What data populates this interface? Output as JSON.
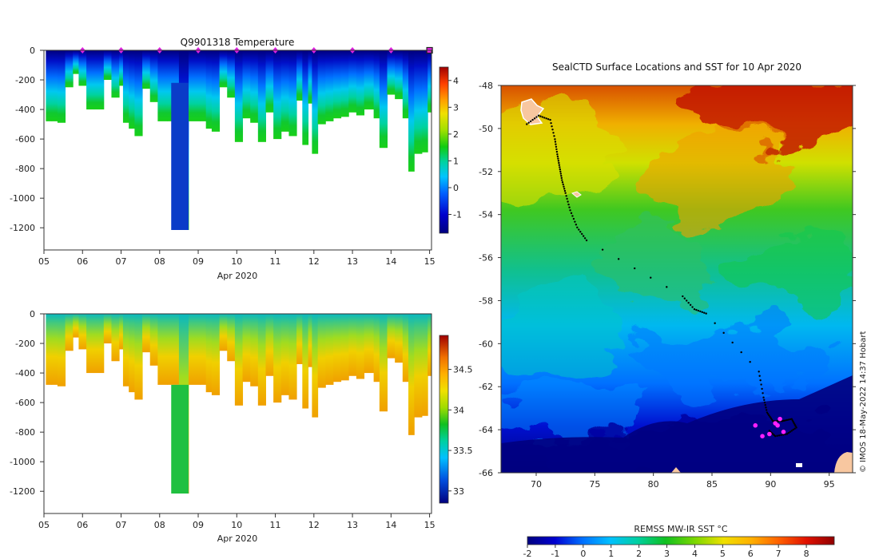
{
  "chart_data": [
    {
      "id": "temperature",
      "type": "heatmap",
      "title": "Q9901318  Temperature",
      "xlabel": "Apr 2020",
      "ylabel": "",
      "xlim": [
        5,
        15.05
      ],
      "ylim": [
        -1350,
        0
      ],
      "x_ticks": [
        "05",
        "06",
        "07",
        "08",
        "09",
        "10",
        "11",
        "12",
        "13",
        "14",
        "15"
      ],
      "y_ticks": [
        "0",
        "-200",
        "-400",
        "-600",
        "-800",
        "-1000",
        "-1200"
      ],
      "colorbar": {
        "min": -1.7,
        "max": 4.5,
        "ticks": [
          "4",
          "3",
          "2",
          "1",
          "0",
          "-1"
        ]
      },
      "surface_markers": [
        6,
        7,
        8,
        9,
        10,
        11,
        12,
        13,
        14
      ],
      "highlight_marker": 15.0,
      "profiles": [
        {
          "t": 5.05,
          "depth": 480
        },
        {
          "t": 5.2,
          "depth": 480
        },
        {
          "t": 5.35,
          "depth": 490
        },
        {
          "t": 5.55,
          "depth": 250
        },
        {
          "t": 5.75,
          "depth": 160
        },
        {
          "t": 5.9,
          "depth": 240
        },
        {
          "t": 6.1,
          "depth": 400
        },
        {
          "t": 6.3,
          "depth": 400
        },
        {
          "t": 6.55,
          "depth": 200
        },
        {
          "t": 6.75,
          "depth": 320
        },
        {
          "t": 6.95,
          "depth": 240
        },
        {
          "t": 7.05,
          "depth": 490
        },
        {
          "t": 7.2,
          "depth": 530
        },
        {
          "t": 7.35,
          "depth": 580
        },
        {
          "t": 7.55,
          "depth": 260
        },
        {
          "t": 7.75,
          "depth": 350
        },
        {
          "t": 7.95,
          "depth": 480
        },
        {
          "t": 8.2,
          "depth": 480
        },
        {
          "t": 8.5,
          "depth": 1215
        },
        {
          "t": 8.75,
          "depth": 480
        },
        {
          "t": 9.05,
          "depth": 480
        },
        {
          "t": 9.2,
          "depth": 530
        },
        {
          "t": 9.35,
          "depth": 550
        },
        {
          "t": 9.55,
          "depth": 250
        },
        {
          "t": 9.75,
          "depth": 320
        },
        {
          "t": 9.95,
          "depth": 620
        },
        {
          "t": 10.15,
          "depth": 460
        },
        {
          "t": 10.35,
          "depth": 490
        },
        {
          "t": 10.55,
          "depth": 620
        },
        {
          "t": 10.75,
          "depth": 420
        },
        {
          "t": 10.95,
          "depth": 600
        },
        {
          "t": 11.15,
          "depth": 550
        },
        {
          "t": 11.35,
          "depth": 580
        },
        {
          "t": 11.55,
          "depth": 340
        },
        {
          "t": 11.7,
          "depth": 640
        },
        {
          "t": 11.85,
          "depth": 360
        },
        {
          "t": 11.95,
          "depth": 700
        },
        {
          "t": 12.1,
          "depth": 500
        },
        {
          "t": 12.3,
          "depth": 480
        },
        {
          "t": 12.5,
          "depth": 460
        },
        {
          "t": 12.7,
          "depth": 450
        },
        {
          "t": 12.9,
          "depth": 420
        },
        {
          "t": 13.1,
          "depth": 440
        },
        {
          "t": 13.3,
          "depth": 400
        },
        {
          "t": 13.55,
          "depth": 460
        },
        {
          "t": 13.7,
          "depth": 660
        },
        {
          "t": 13.9,
          "depth": 300
        },
        {
          "t": 14.1,
          "depth": 330
        },
        {
          "t": 14.3,
          "depth": 460
        },
        {
          "t": 14.45,
          "depth": 820
        },
        {
          "t": 14.6,
          "depth": 700
        },
        {
          "t": 14.8,
          "depth": 690
        },
        {
          "t": 14.95,
          "depth": 420
        }
      ]
    },
    {
      "id": "salinity",
      "type": "heatmap",
      "title": "",
      "xlabel": "Apr 2020",
      "ylabel": "",
      "xlim": [
        5,
        15.05
      ],
      "ylim": [
        -1350,
        0
      ],
      "x_ticks": [
        "05",
        "06",
        "07",
        "08",
        "09",
        "10",
        "11",
        "12",
        "13",
        "14",
        "15"
      ],
      "y_ticks": [
        "0",
        "-200",
        "-400",
        "-600",
        "-800",
        "-1000",
        "-1200"
      ],
      "colorbar": {
        "min": 32.85,
        "max": 34.92,
        "ticks": [
          "34.5",
          "34",
          "33.5",
          "33"
        ]
      }
    },
    {
      "id": "sst_map",
      "type": "heatmap",
      "title": "SealCTD Surface Locations and SST for 10 Apr 2020",
      "xlim": [
        67,
        97
      ],
      "ylim": [
        -66,
        -48
      ],
      "x_ticks": [
        "70",
        "75",
        "80",
        "85",
        "90",
        "95"
      ],
      "y_ticks": [
        "-48",
        "-50",
        "-52",
        "-54",
        "-56",
        "-58",
        "-60",
        "-62",
        "-64",
        "-66"
      ],
      "colorbar": {
        "label": "REMSS MW-IR SST °C",
        "min": -2,
        "max": 9,
        "ticks": [
          "-2",
          "-1",
          "0",
          "1",
          "2",
          "3",
          "4",
          "5",
          "6",
          "7",
          "8"
        ]
      },
      "track": [
        [
          69.2,
          -49.8
        ],
        [
          70.2,
          -49.4
        ],
        [
          71.2,
          -49.6
        ],
        [
          71.6,
          -50.5
        ],
        [
          71.8,
          -51.2
        ],
        [
          72.0,
          -51.8
        ],
        [
          72.2,
          -52.4
        ],
        [
          72.5,
          -53.0
        ],
        [
          72.9,
          -53.8
        ],
        [
          73.5,
          -54.6
        ],
        [
          74.3,
          -55.2
        ],
        [
          82.5,
          -57.8
        ],
        [
          83.5,
          -58.4
        ],
        [
          84.5,
          -58.6
        ],
        [
          89.0,
          -61.3
        ],
        [
          89.4,
          -62.5
        ],
        [
          89.7,
          -63.2
        ],
        [
          90.2,
          -63.6
        ],
        [
          91.0,
          -63.6
        ],
        [
          91.8,
          -63.5
        ],
        [
          92.2,
          -63.9
        ],
        [
          91.4,
          -64.2
        ],
        [
          90.4,
          -64.3
        ],
        [
          89.8,
          -64.0
        ]
      ],
      "last_positions": [
        [
          88.7,
          -63.8
        ],
        [
          89.3,
          -64.3
        ],
        [
          89.9,
          -64.2
        ],
        [
          90.4,
          -63.7
        ],
        [
          90.8,
          -63.5
        ],
        [
          91.1,
          -64.1
        ],
        [
          90.6,
          -63.8
        ]
      ]
    }
  ],
  "credit": "© IMOS 18-May-2022 14:37 Hobart"
}
